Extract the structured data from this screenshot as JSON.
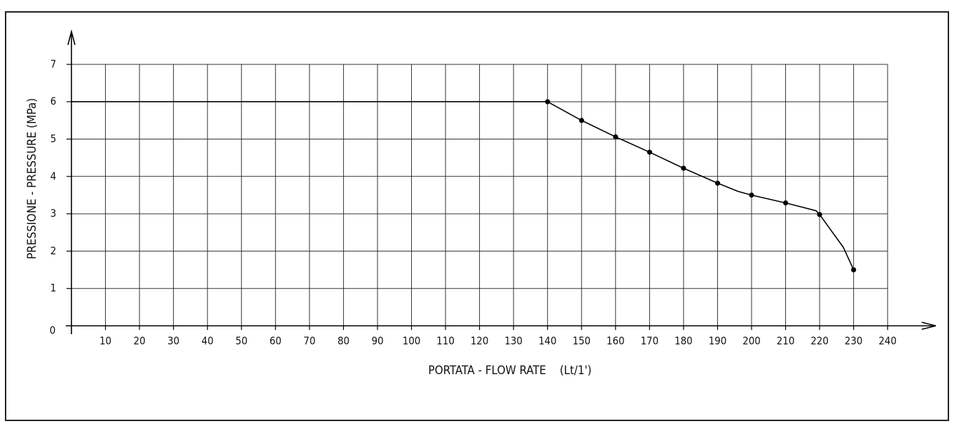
{
  "chart_data": {
    "type": "line",
    "title": "",
    "xlabel": "PORTATA - FLOW RATE    (Lt/1')",
    "ylabel": "PRESSIONE - PRESSURE (MPa)",
    "origin_label": "0",
    "xlim": [
      0,
      240
    ],
    "ylim": [
      0,
      7
    ],
    "xticks": [
      10,
      20,
      30,
      40,
      50,
      60,
      70,
      80,
      90,
      100,
      110,
      120,
      130,
      140,
      150,
      160,
      170,
      180,
      190,
      200,
      210,
      220,
      230,
      240
    ],
    "yticks": [
      1,
      2,
      3,
      4,
      5,
      6,
      7
    ],
    "grid": true,
    "colors": {
      "line": "#000000",
      "grid": "#333333",
      "axis": "#000000"
    },
    "series": [
      {
        "line": [
          {
            "x": 0,
            "y": 6.0
          },
          {
            "x": 140,
            "y": 6.0
          },
          {
            "x": 150,
            "y": 5.5
          },
          {
            "x": 160,
            "y": 5.06
          },
          {
            "x": 170,
            "y": 4.65
          },
          {
            "x": 180,
            "y": 4.22
          },
          {
            "x": 190,
            "y": 3.82
          },
          {
            "x": 196,
            "y": 3.6
          },
          {
            "x": 200,
            "y": 3.5
          },
          {
            "x": 210,
            "y": 3.29
          },
          {
            "x": 219,
            "y": 3.08
          },
          {
            "x": 220,
            "y": 2.98
          },
          {
            "x": 227,
            "y": 2.1
          },
          {
            "x": 230,
            "y": 1.5
          }
        ],
        "markers": [
          {
            "x": 140,
            "y": 6.0
          },
          {
            "x": 150,
            "y": 5.5
          },
          {
            "x": 160,
            "y": 5.06
          },
          {
            "x": 170,
            "y": 4.65
          },
          {
            "x": 180,
            "y": 4.22
          },
          {
            "x": 190,
            "y": 3.82
          },
          {
            "x": 200,
            "y": 3.5
          },
          {
            "x": 210,
            "y": 3.29
          },
          {
            "x": 220,
            "y": 2.98
          },
          {
            "x": 230,
            "y": 1.5
          }
        ]
      }
    ]
  }
}
